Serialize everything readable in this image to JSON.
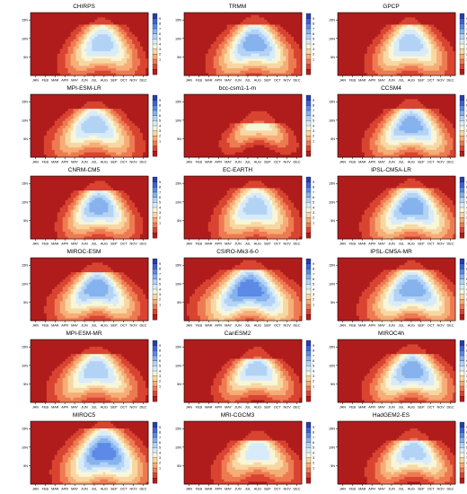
{
  "figure": {
    "months": [
      "JAN",
      "FEB",
      "MAR",
      "APR",
      "MAY",
      "JUN",
      "JUL",
      "AUG",
      "SEP",
      "OCT",
      "NOV",
      "DEC"
    ],
    "lat_ticks": [
      "15N",
      "10N",
      "5N"
    ],
    "colorbar_labels": [
      "9",
      "8",
      "7",
      "6",
      "5",
      "4",
      "3",
      "2",
      "1"
    ],
    "colorbar_colors": [
      "#2a3fae",
      "#3e62d6",
      "#5c8ae6",
      "#86b3ee",
      "#b3d3f5",
      "#d8ebfa",
      "#f8f6d8",
      "#f8d7a2",
      "#f6ad76",
      "#ee7a52",
      "#d94431",
      "#b01c1c"
    ]
  },
  "chart_data": [
    {
      "type": "heatmap",
      "title": "CHIRPS",
      "peak": 8,
      "center_month": 7.3,
      "spread": 3.2,
      "lat_top": 13.5
    },
    {
      "type": "heatmap",
      "title": "TRMM",
      "peak": 9,
      "center_month": 7.2,
      "spread": 3.4,
      "lat_top": 14
    },
    {
      "type": "heatmap",
      "title": "GPCP",
      "peak": 8,
      "center_month": 7.4,
      "spread": 3.3,
      "lat_top": 13.5
    },
    {
      "type": "heatmap",
      "title": "MPI-ESM-LR",
      "peak": 8,
      "center_month": 6.5,
      "spread": 3.6,
      "lat_top": 13
    },
    {
      "type": "heatmap",
      "title": "bcc-csm1-1-m",
      "peak": 6,
      "center_month": 7.6,
      "spread": 3.0,
      "lat_top": 9
    },
    {
      "type": "heatmap",
      "title": "CCSM4",
      "peak": 9,
      "center_month": 7.5,
      "spread": 3.4,
      "lat_top": 13
    },
    {
      "type": "heatmap",
      "title": "CNRM-CM5",
      "peak": 9,
      "center_month": 7.0,
      "spread": 3.0,
      "lat_top": 13
    },
    {
      "type": "heatmap",
      "title": "EC-EARTH",
      "peak": 8,
      "center_month": 7.3,
      "spread": 3.3,
      "lat_top": 14
    },
    {
      "type": "heatmap",
      "title": "IPSL-CM5A-LR",
      "peak": 9,
      "center_month": 7.6,
      "spread": 3.6,
      "lat_top": 14
    },
    {
      "type": "heatmap",
      "title": "MIROC-ESM",
      "peak": 9,
      "center_month": 6.8,
      "spread": 3.6,
      "lat_top": 13
    },
    {
      "type": "heatmap",
      "title": "CSIRO-Mk3-6-0",
      "peak": 10,
      "center_month": 6.7,
      "spread": 4.2,
      "lat_top": 14
    },
    {
      "type": "heatmap",
      "title": "IPSL-CM5A-MR",
      "peak": 9,
      "center_month": 7.6,
      "spread": 3.8,
      "lat_top": 14
    },
    {
      "type": "heatmap",
      "title": "MPI-ESM-MR",
      "peak": 8,
      "center_month": 6.7,
      "spread": 3.6,
      "lat_top": 13
    },
    {
      "type": "heatmap",
      "title": "CanESM2",
      "peak": 8,
      "center_month": 7.4,
      "spread": 3.2,
      "lat_top": 12
    },
    {
      "type": "heatmap",
      "title": "MIROC4h",
      "peak": 9,
      "center_month": 7.6,
      "spread": 3.5,
      "lat_top": 13
    },
    {
      "type": "heatmap",
      "title": "MIROC5",
      "peak": 10,
      "center_month": 7.5,
      "spread": 3.6,
      "lat_top": 15
    },
    {
      "type": "heatmap",
      "title": "MRI-CGCM3",
      "peak": 7,
      "center_month": 7.5,
      "spread": 3.4,
      "lat_top": 12
    },
    {
      "type": "heatmap",
      "title": "HadGEM2-ES",
      "peak": 8,
      "center_month": 7.7,
      "spread": 3.4,
      "lat_top": 12
    }
  ]
}
